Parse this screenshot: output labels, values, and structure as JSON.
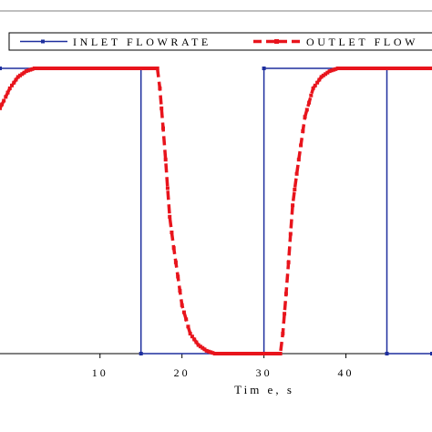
{
  "chart_data": {
    "type": "line",
    "xlabel": "Tim e, s",
    "ylabel": "",
    "xlim": [
      -2.2,
      50.5
    ],
    "ylim": [
      0,
      1
    ],
    "x_ticks": [
      10,
      20,
      30,
      40
    ],
    "x_tick_labels": [
      "10",
      "20",
      "30",
      "40"
    ],
    "grid": false,
    "legend_position": "top",
    "series": [
      {
        "name": "INLET FLOWRATE",
        "color": "#1e2f9e",
        "style": "solid-with-square-markers",
        "x": [
          -2.2,
          15,
          15,
          30,
          30,
          45,
          45,
          50.5
        ],
        "y": [
          1,
          1,
          0,
          0,
          1,
          1,
          0,
          0
        ]
      },
      {
        "name": "OUTLET FLOW",
        "color": "#e8141c",
        "style": "dashed-with-markers",
        "x": [
          -2.2,
          -1.5,
          -1,
          0,
          1,
          2,
          3,
          17,
          17.3,
          17.7,
          18,
          18.5,
          19,
          20,
          21,
          22,
          23,
          24,
          25,
          32,
          32.3,
          32.7,
          33,
          33.5,
          34,
          35,
          36,
          37,
          38,
          39,
          40,
          50.5
        ],
        "y": [
          0.86,
          0.9,
          0.93,
          0.97,
          0.99,
          1,
          1,
          1,
          0.93,
          0.79,
          0.68,
          0.48,
          0.37,
          0.17,
          0.07,
          0.03,
          0.01,
          0,
          0,
          0,
          0.07,
          0.21,
          0.32,
          0.52,
          0.63,
          0.83,
          0.93,
          0.97,
          0.99,
          1,
          1,
          1
        ]
      }
    ]
  }
}
